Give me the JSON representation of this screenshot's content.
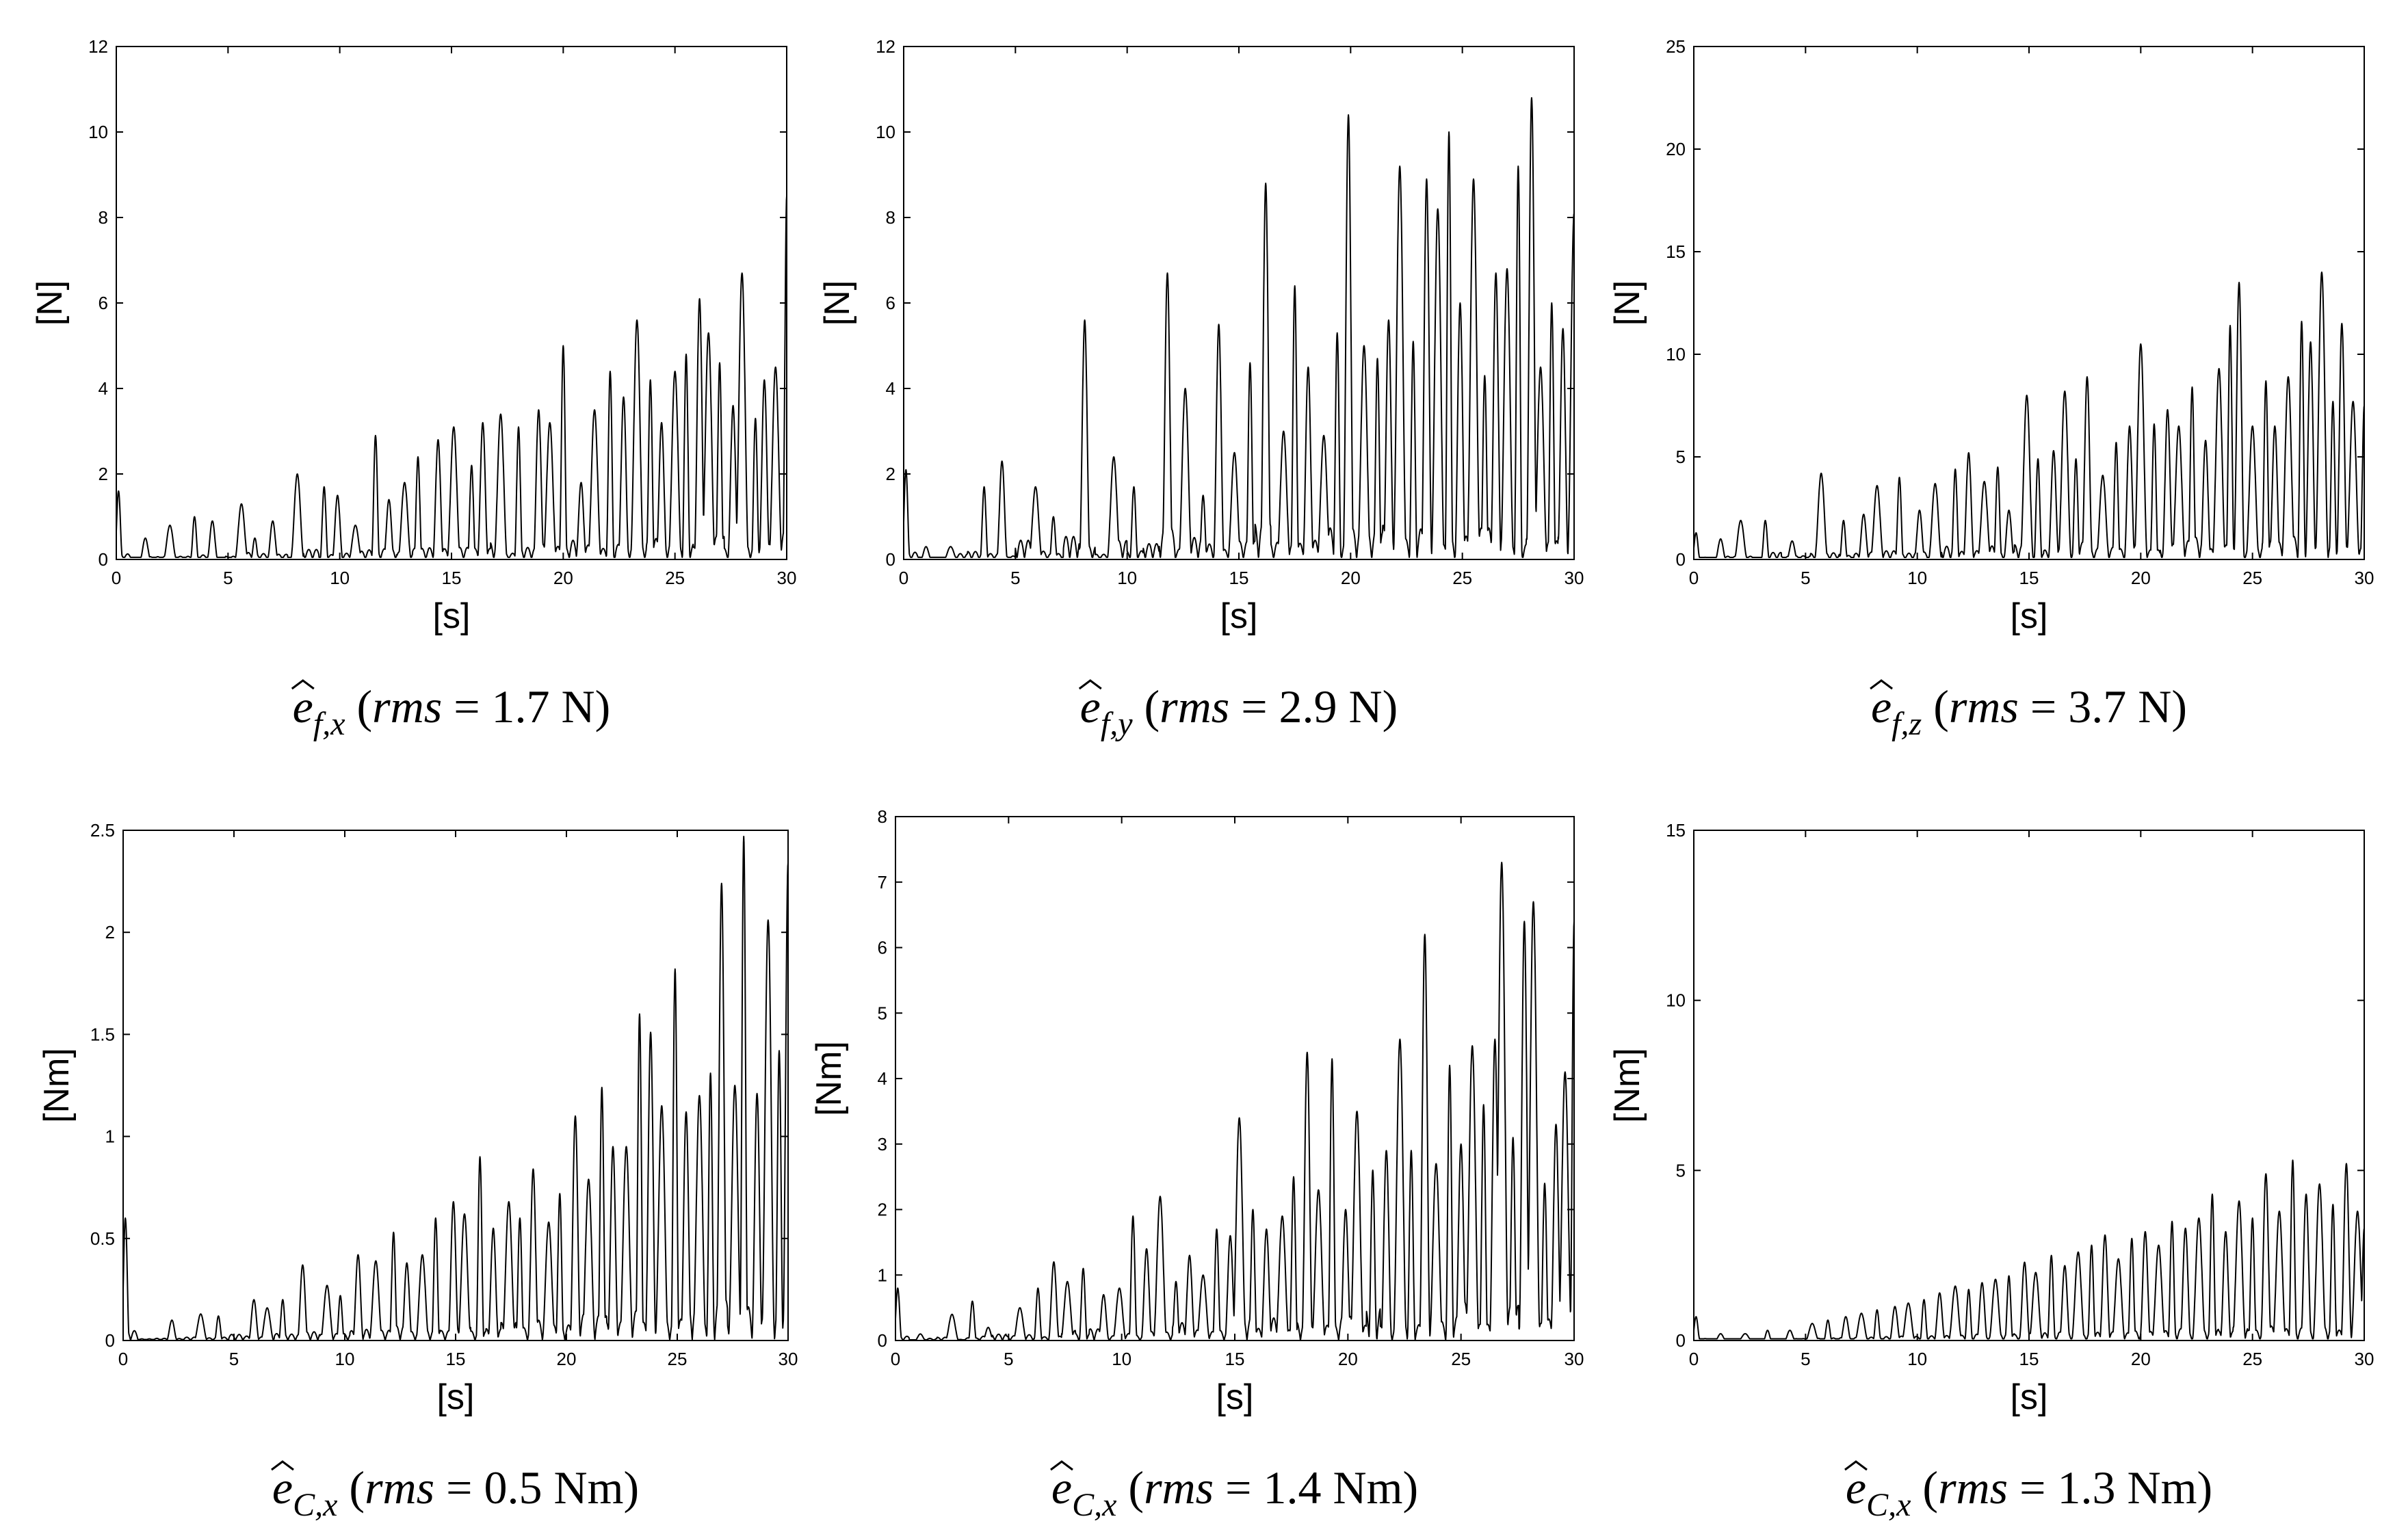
{
  "chart_data": [
    {
      "type": "line",
      "xlabel": "[s]",
      "ylabel": "[N]",
      "xlim": [
        0,
        30
      ],
      "ylim": [
        0,
        12
      ],
      "xticks": [
        0,
        5,
        10,
        15,
        20,
        25,
        30
      ],
      "yticks": [
        0,
        2,
        4,
        6,
        8,
        10,
        12
      ],
      "caption": {
        "hat": "e",
        "sub": "f,x",
        "rms_label": "rms",
        "value_text": "1.7 N"
      },
      "series": [
        {
          "name": "e_f_x",
          "peak_times": [
            0.1,
            1.3,
            2.4,
            3.5,
            4.3,
            5.6,
            6.2,
            7.0,
            8.1,
            9.3,
            9.9,
            10.7,
            11.6,
            12.2,
            12.9,
            13.5,
            14.4,
            15.1,
            15.9,
            16.4,
            17.2,
            18.0,
            18.9,
            19.4,
            20.0,
            20.8,
            21.4,
            22.1,
            22.7,
            23.3,
            23.9,
            24.4,
            25.0,
            25.5,
            26.1,
            26.5,
            27.0,
            27.6,
            28.0,
            28.6,
            29.0,
            29.5,
            30.0
          ],
          "peak_values": [
            1.6,
            0.5,
            0.8,
            1.0,
            0.9,
            1.3,
            0.5,
            0.9,
            2.0,
            1.7,
            1.5,
            0.8,
            2.9,
            1.4,
            1.8,
            2.4,
            2.8,
            3.1,
            2.2,
            3.2,
            3.4,
            3.1,
            3.5,
            3.2,
            5.0,
            1.8,
            3.5,
            4.4,
            3.8,
            5.6,
            4.2,
            3.2,
            4.4,
            4.8,
            6.1,
            5.3,
            4.6,
            3.6,
            6.7,
            3.3,
            4.2,
            4.5,
            8.5
          ],
          "baseline": 0.05
        }
      ]
    },
    {
      "type": "line",
      "xlabel": "[s]",
      "ylabel": "[N]",
      "xlim": [
        0,
        30
      ],
      "ylim": [
        0,
        12
      ],
      "xticks": [
        0,
        5,
        10,
        15,
        20,
        25,
        30
      ],
      "yticks": [
        0,
        2,
        4,
        6,
        8,
        10,
        12
      ],
      "caption": {
        "hat": "e",
        "sub": "f,y",
        "rms_label": "rms",
        "value_text": "2.9 N"
      },
      "series": [
        {
          "name": "e_f_y",
          "peak_times": [
            0.1,
            1.0,
            2.1,
            3.6,
            4.4,
            5.9,
            6.7,
            8.1,
            9.4,
            10.3,
            11.8,
            12.6,
            13.4,
            14.1,
            14.8,
            15.5,
            16.2,
            17.0,
            17.5,
            18.1,
            18.8,
            19.4,
            19.9,
            20.6,
            21.2,
            21.7,
            22.2,
            22.8,
            23.4,
            23.9,
            24.4,
            24.9,
            25.5,
            26.0,
            26.5,
            27.0,
            27.5,
            28.1,
            28.5,
            29.0,
            29.5,
            30.0
          ],
          "peak_values": [
            2.1,
            0.3,
            0.3,
            1.7,
            2.3,
            1.7,
            1.0,
            5.6,
            2.4,
            1.7,
            6.7,
            4.0,
            1.5,
            5.5,
            2.5,
            4.6,
            8.8,
            3.0,
            6.4,
            4.5,
            2.9,
            5.3,
            10.4,
            5.0,
            4.7,
            5.6,
            9.2,
            5.1,
            8.9,
            8.2,
            10.0,
            6.0,
            8.9,
            4.3,
            6.7,
            6.8,
            9.2,
            10.8,
            4.5,
            6.0,
            5.4,
            8.1
          ],
          "baseline": 0.05
        }
      ]
    },
    {
      "type": "line",
      "xlabel": "[s]",
      "ylabel": "[N]",
      "xlim": [
        0,
        30
      ],
      "ylim": [
        0,
        25
      ],
      "xticks": [
        0,
        5,
        10,
        15,
        20,
        25,
        30
      ],
      "yticks": [
        0,
        5,
        10,
        15,
        20,
        25
      ],
      "caption": {
        "hat": "e",
        "sub": "f,z",
        "rms_label": "rms",
        "value_text": "3.7 N"
      },
      "series": [
        {
          "name": "e_f_z",
          "peak_times": [
            0.1,
            1.2,
            2.1,
            3.2,
            4.4,
            5.7,
            6.7,
            7.6,
            8.2,
            9.2,
            10.1,
            10.8,
            11.7,
            12.3,
            13.0,
            13.6,
            14.1,
            14.9,
            15.4,
            16.1,
            16.6,
            17.1,
            17.6,
            18.3,
            18.9,
            19.5,
            20.0,
            20.6,
            21.2,
            21.7,
            22.3,
            22.9,
            23.5,
            24.0,
            24.4,
            25.0,
            25.6,
            26.0,
            26.6,
            27.2,
            27.6,
            28.1,
            28.6,
            29.0,
            29.5,
            30.0
          ],
          "peak_values": [
            1.3,
            1.0,
            1.9,
            1.9,
            0.9,
            4.2,
            1.9,
            2.2,
            3.6,
            4.0,
            2.4,
            3.7,
            4.4,
            5.2,
            3.8,
            4.5,
            2.4,
            8.0,
            4.9,
            5.3,
            8.2,
            4.9,
            8.9,
            4.1,
            5.7,
            6.5,
            10.5,
            6.6,
            7.3,
            6.5,
            8.4,
            5.8,
            9.3,
            11.4,
            13.5,
            6.5,
            8.7,
            6.5,
            8.9,
            11.6,
            10.6,
            14.0,
            7.7,
            11.5,
            7.7,
            7.5
          ],
          "baseline": 0.1
        }
      ]
    },
    {
      "type": "line",
      "xlabel": "[s]",
      "ylabel": "[Nm]",
      "xlim": [
        0,
        30
      ],
      "ylim": [
        0,
        2.5
      ],
      "xticks": [
        0,
        5,
        10,
        15,
        20,
        25,
        30
      ],
      "yticks": [
        0,
        0.5,
        1,
        1.5,
        2,
        2.5
      ],
      "caption": {
        "hat": "e",
        "sub": "C,x",
        "rms_label": "rms",
        "value_text": "0.5 Nm"
      },
      "series": [
        {
          "name": "e_C_x_1",
          "peak_times": [
            0.1,
            2.2,
            3.5,
            4.3,
            5.9,
            6.5,
            7.2,
            8.1,
            9.2,
            9.8,
            10.6,
            11.4,
            12.2,
            12.8,
            13.5,
            14.1,
            14.9,
            15.4,
            16.1,
            16.7,
            17.4,
            17.9,
            18.5,
            19.2,
            19.7,
            20.4,
            21.0,
            21.6,
            22.1,
            22.7,
            23.3,
            23.8,
            24.3,
            24.9,
            25.4,
            26.0,
            26.5,
            27.0,
            27.6,
            28.0,
            28.6,
            29.1,
            29.6,
            30.0
          ],
          "peak_values": [
            0.6,
            0.1,
            0.13,
            0.12,
            0.2,
            0.16,
            0.2,
            0.37,
            0.27,
            0.22,
            0.42,
            0.39,
            0.53,
            0.38,
            0.42,
            0.6,
            0.68,
            0.62,
            0.9,
            0.55,
            0.68,
            0.6,
            0.84,
            0.58,
            0.72,
            1.1,
            0.79,
            1.24,
            0.95,
            0.95,
            1.6,
            1.51,
            1.15,
            1.82,
            1.12,
            1.2,
            1.31,
            2.24,
            1.25,
            2.47,
            1.21,
            2.06,
            1.42,
            2.34
          ],
          "baseline": 0.005
        }
      ]
    },
    {
      "type": "line",
      "xlabel": "[s]",
      "ylabel": "[Nm]",
      "xlim": [
        0,
        30
      ],
      "ylim": [
        0,
        8
      ],
      "xticks": [
        0,
        5,
        10,
        15,
        20,
        25,
        30
      ],
      "yticks": [
        0,
        1,
        2,
        3,
        4,
        5,
        6,
        7,
        8
      ],
      "caption": {
        "hat": "e",
        "sub": "C,x",
        "rms_label": "rms",
        "value_text": "1.4 Nm"
      },
      "series": [
        {
          "name": "e_C_x_2",
          "peak_times": [
            0.1,
            1.1,
            2.5,
            3.4,
            4.1,
            5.5,
            6.3,
            7.0,
            7.6,
            8.3,
            9.2,
            9.9,
            10.5,
            11.1,
            11.7,
            12.4,
            13.0,
            13.6,
            14.2,
            14.8,
            15.2,
            15.8,
            16.4,
            17.1,
            17.6,
            18.2,
            18.7,
            19.3,
            19.9,
            20.4,
            21.1,
            21.7,
            22.3,
            22.8,
            23.4,
            23.9,
            24.5,
            25.0,
            25.5,
            26.0,
            26.5,
            26.8,
            27.3,
            27.8,
            28.2,
            28.7,
            29.2,
            29.6,
            30.0
          ],
          "peak_values": [
            0.8,
            0.1,
            0.4,
            0.6,
            0.2,
            0.5,
            0.8,
            1.2,
            0.9,
            1.1,
            0.7,
            0.8,
            1.9,
            1.4,
            2.2,
            0.9,
            1.3,
            1.0,
            1.7,
            1.6,
            3.4,
            2.0,
            1.7,
            1.9,
            2.5,
            4.4,
            2.3,
            4.3,
            2.0,
            3.5,
            2.6,
            2.9,
            4.6,
            2.9,
            6.2,
            2.7,
            4.2,
            3.0,
            4.5,
            3.6,
            4.6,
            7.3,
            3.1,
            6.4,
            6.7,
            2.4,
            3.3,
            4.1,
            6.4
          ],
          "baseline": 0.01
        }
      ]
    },
    {
      "type": "line",
      "xlabel": "[s]",
      "ylabel": "[Nm]",
      "xlim": [
        0,
        30
      ],
      "ylim": [
        0,
        15
      ],
      "xticks": [
        0,
        5,
        10,
        15,
        20,
        25,
        30
      ],
      "yticks": [
        0,
        5,
        10,
        15
      ],
      "caption": {
        "hat": "e",
        "sub": "C,x",
        "rms_label": "rms",
        "value_text": "1.3 Nm"
      },
      "series": [
        {
          "name": "e_C_x_3",
          "peak_times": [
            0.1,
            1.2,
            2.3,
            3.3,
            4.3,
            5.3,
            6.0,
            6.8,
            7.5,
            8.2,
            9.0,
            9.6,
            10.3,
            11.0,
            11.7,
            12.3,
            12.9,
            13.5,
            14.1,
            14.8,
            15.3,
            16.0,
            16.6,
            17.2,
            17.8,
            18.4,
            19.0,
            19.6,
            20.2,
            20.8,
            21.4,
            22.0,
            22.6,
            23.2,
            23.8,
            24.4,
            25.0,
            25.6,
            26.2,
            26.8,
            27.4,
            28.0,
            28.6,
            29.2,
            29.7,
            30.0
          ],
          "peak_values": [
            0.7,
            0.2,
            0.2,
            0.3,
            0.3,
            0.5,
            0.6,
            0.7,
            0.8,
            0.9,
            1.0,
            1.1,
            1.2,
            1.4,
            1.6,
            1.5,
            1.7,
            1.8,
            1.9,
            2.3,
            2.0,
            2.5,
            2.2,
            2.6,
            2.8,
            3.1,
            2.4,
            3.0,
            3.2,
            2.8,
            3.5,
            3.3,
            3.6,
            4.3,
            3.2,
            4.1,
            3.6,
            4.9,
            3.8,
            5.3,
            4.3,
            4.6,
            4.0,
            5.2,
            3.8,
            3.3
          ],
          "baseline": 0.05
        }
      ]
    }
  ]
}
